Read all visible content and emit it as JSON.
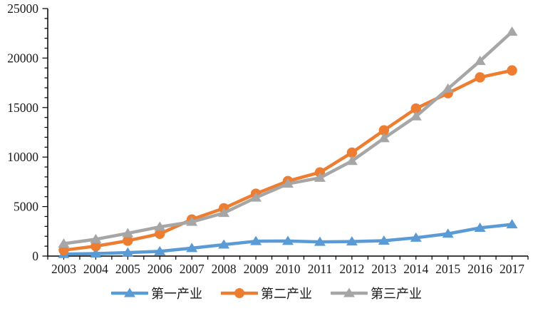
{
  "chart_data": {
    "type": "line",
    "title": "",
    "xlabel": "",
    "ylabel": "",
    "grid": false,
    "categories": [
      "2003",
      "2004",
      "2005",
      "2006",
      "2007",
      "2008",
      "2009",
      "2010",
      "2011",
      "2012",
      "2013",
      "2014",
      "2015",
      "2016",
      "2017"
    ],
    "y_axis": {
      "min": 0,
      "max": 25000,
      "major_tick_interval": 5000,
      "minor_tick_interval": 1000,
      "tick_labels": [
        "0",
        "5000",
        "10000",
        "15000",
        "20000",
        "25000"
      ]
    },
    "series": [
      {
        "name": "第一产业",
        "color": "#5B9BD5",
        "marker": "triangle",
        "values": [
          200,
          250,
          350,
          480,
          800,
          1150,
          1500,
          1520,
          1430,
          1470,
          1550,
          1850,
          2250,
          2850,
          3200
        ]
      },
      {
        "name": "第二产业",
        "color": "#ED7D31",
        "marker": "circle",
        "values": [
          600,
          1000,
          1550,
          2250,
          3700,
          4830,
          6300,
          7580,
          8450,
          10450,
          12700,
          14900,
          16450,
          18050,
          18750
        ]
      },
      {
        "name": "第三产业",
        "color": "#A6A6A6",
        "marker": "triangle",
        "values": [
          1250,
          1700,
          2300,
          2950,
          3450,
          4350,
          5900,
          7300,
          7900,
          9600,
          11900,
          14100,
          16900,
          19700,
          22650
        ]
      }
    ],
    "legend": {
      "position": "bottom"
    },
    "axis_color": "#000000",
    "label_color": "#1a1a1a"
  }
}
